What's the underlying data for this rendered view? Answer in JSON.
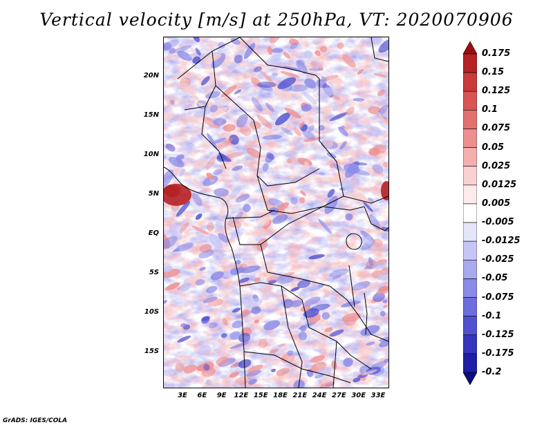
{
  "title": "Vertical velocity [m/s] at 250hPa, VT: 2020070906",
  "credit": "GrADS: IGES/COLA",
  "axes": {
    "lat_labels": [
      "20N",
      "15N",
      "10N",
      "5N",
      "EQ",
      "5S",
      "10S",
      "15S"
    ],
    "lon_labels": [
      "3E",
      "6E",
      "9E",
      "12E",
      "15E",
      "18E",
      "21E",
      "24E",
      "27E",
      "30E",
      "33E"
    ]
  },
  "colorbar": {
    "labels": [
      "0.175",
      "0.15",
      "0.125",
      "0.1",
      "0.075",
      "0.05",
      "0.025",
      "0.0125",
      "0.005",
      "-0.005",
      "-0.0125",
      "-0.025",
      "-0.05",
      "-0.075",
      "-0.1",
      "-0.125",
      "-0.175",
      "-0.2"
    ],
    "colors": [
      "#9c0d10",
      "#b52124",
      "#c93a3a",
      "#d95454",
      "#e57070",
      "#ee8f8f",
      "#f5aeae",
      "#fad0d0",
      "#fdeaea",
      "#ffffff",
      "#e4e4fb",
      "#c6c6f6",
      "#a9a9f0",
      "#8a8ae8",
      "#6d6de0",
      "#5050d2",
      "#3535bd",
      "#1e1ea6",
      "#0d0d80"
    ]
  },
  "map": {
    "region": "Central Africa",
    "lon_range": [
      0,
      35
    ],
    "lat_range": [
      -20,
      25
    ],
    "field_colors": {
      "strong_up": "#b52124",
      "up": "#ee8f8f",
      "weak_up": "#fad0d0",
      "weak_down": "#c6c6f6",
      "down": "#8a8ae8",
      "strong_down": "#5050d2"
    }
  }
}
